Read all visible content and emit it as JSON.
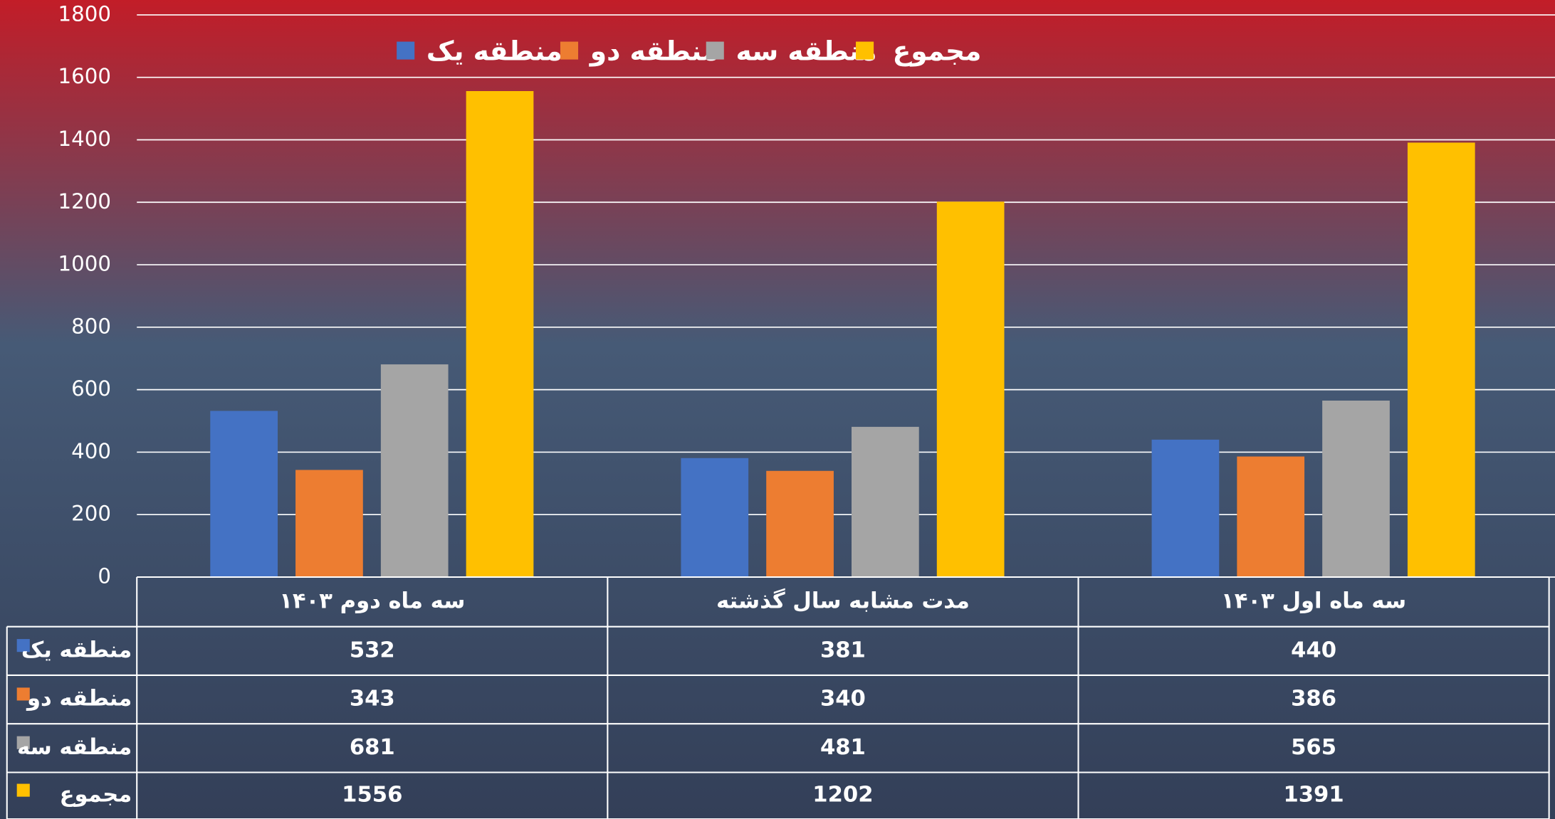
{
  "chart_data": {
    "type": "bar",
    "categories": [
      "سه ماه دوم ۱۴۰۳",
      "مدت مشابه سال گذشته",
      "سه ماه اول ۱۴۰۳"
    ],
    "series": [
      {
        "name": "منطقه یک",
        "color": "#4472c4",
        "values": [
          532,
          381,
          440
        ]
      },
      {
        "name": "منطقه دو",
        "color": "#ed7d31",
        "values": [
          343,
          340,
          386
        ]
      },
      {
        "name": "منطقه سه",
        "color": "#a5a5a5",
        "values": [
          681,
          481,
          565
        ]
      },
      {
        "name": "مجموع",
        "color": "#ffc000",
        "values": [
          1556,
          1202,
          1391
        ]
      }
    ],
    "ylim": [
      0,
      1800
    ],
    "yticks": [
      0,
      200,
      400,
      600,
      800,
      1000,
      1200,
      1400,
      1600,
      1800
    ],
    "grid": true,
    "legend": "top",
    "data_table": true
  }
}
